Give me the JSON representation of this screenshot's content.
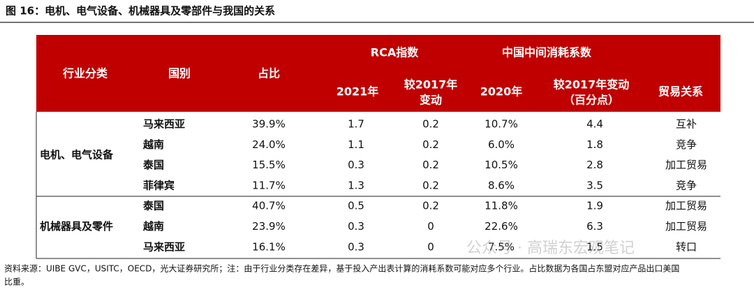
{
  "title": "图 16：电机、电气设备、机械器具及零部件与我国的关系",
  "table": {
    "group_headers": [
      {
        "text": "RCA指数",
        "x": 565
      },
      {
        "text": "中国中间消耗系数",
        "x": 783
      }
    ],
    "headers": [
      [
        "行业分类"
      ],
      [
        "国别"
      ],
      [
        "占比"
      ],
      [
        "2021年"
      ],
      [
        "较2017年",
        "变动"
      ],
      [
        "2020年"
      ],
      [
        "较2017年变动",
        "（百分点）"
      ],
      [
        "贸易关系"
      ]
    ],
    "groups": [
      {
        "name": "电机、电气设备",
        "rows": [
          [
            "马来西亚",
            "39.9%",
            "1.7",
            "0.2",
            "10.7%",
            "4.4",
            "互补"
          ],
          [
            "越南",
            "24.0%",
            "1.1",
            "0.2",
            "6.0%",
            "1.8",
            "竞争"
          ],
          [
            "泰国",
            "15.5%",
            "0.3",
            "0.2",
            "10.5%",
            "2.8",
            "加工贸易"
          ],
          [
            "菲律宾",
            "11.7%",
            "1.3",
            "0.2",
            "8.6%",
            "3.5",
            "竞争"
          ]
        ]
      },
      {
        "name": "机械器具及零件",
        "rows": [
          [
            "泰国",
            "40.7%",
            "0.5",
            "0.2",
            "11.8%",
            "1.9",
            "加工贸易"
          ],
          [
            "越南",
            "23.9%",
            "0.3",
            "0",
            "22.6%",
            "6.3",
            "加工贸易"
          ],
          [
            "马来西亚",
            "16.1%",
            "0.3",
            "0",
            "7.5%",
            "1.5",
            "转口"
          ]
        ]
      }
    ]
  },
  "note": [
    "资料来源：UIBE GVC，USITC，OECD，光大证券研究所；注：由于行业分类存在差异，基于投入产出表计算的消耗系数可能对应多个行业。占比数据为各国占东盟对应产品出口美国",
    "比重。"
  ],
  "watermark": "公众号 · 高瑞东宏观笔记"
}
